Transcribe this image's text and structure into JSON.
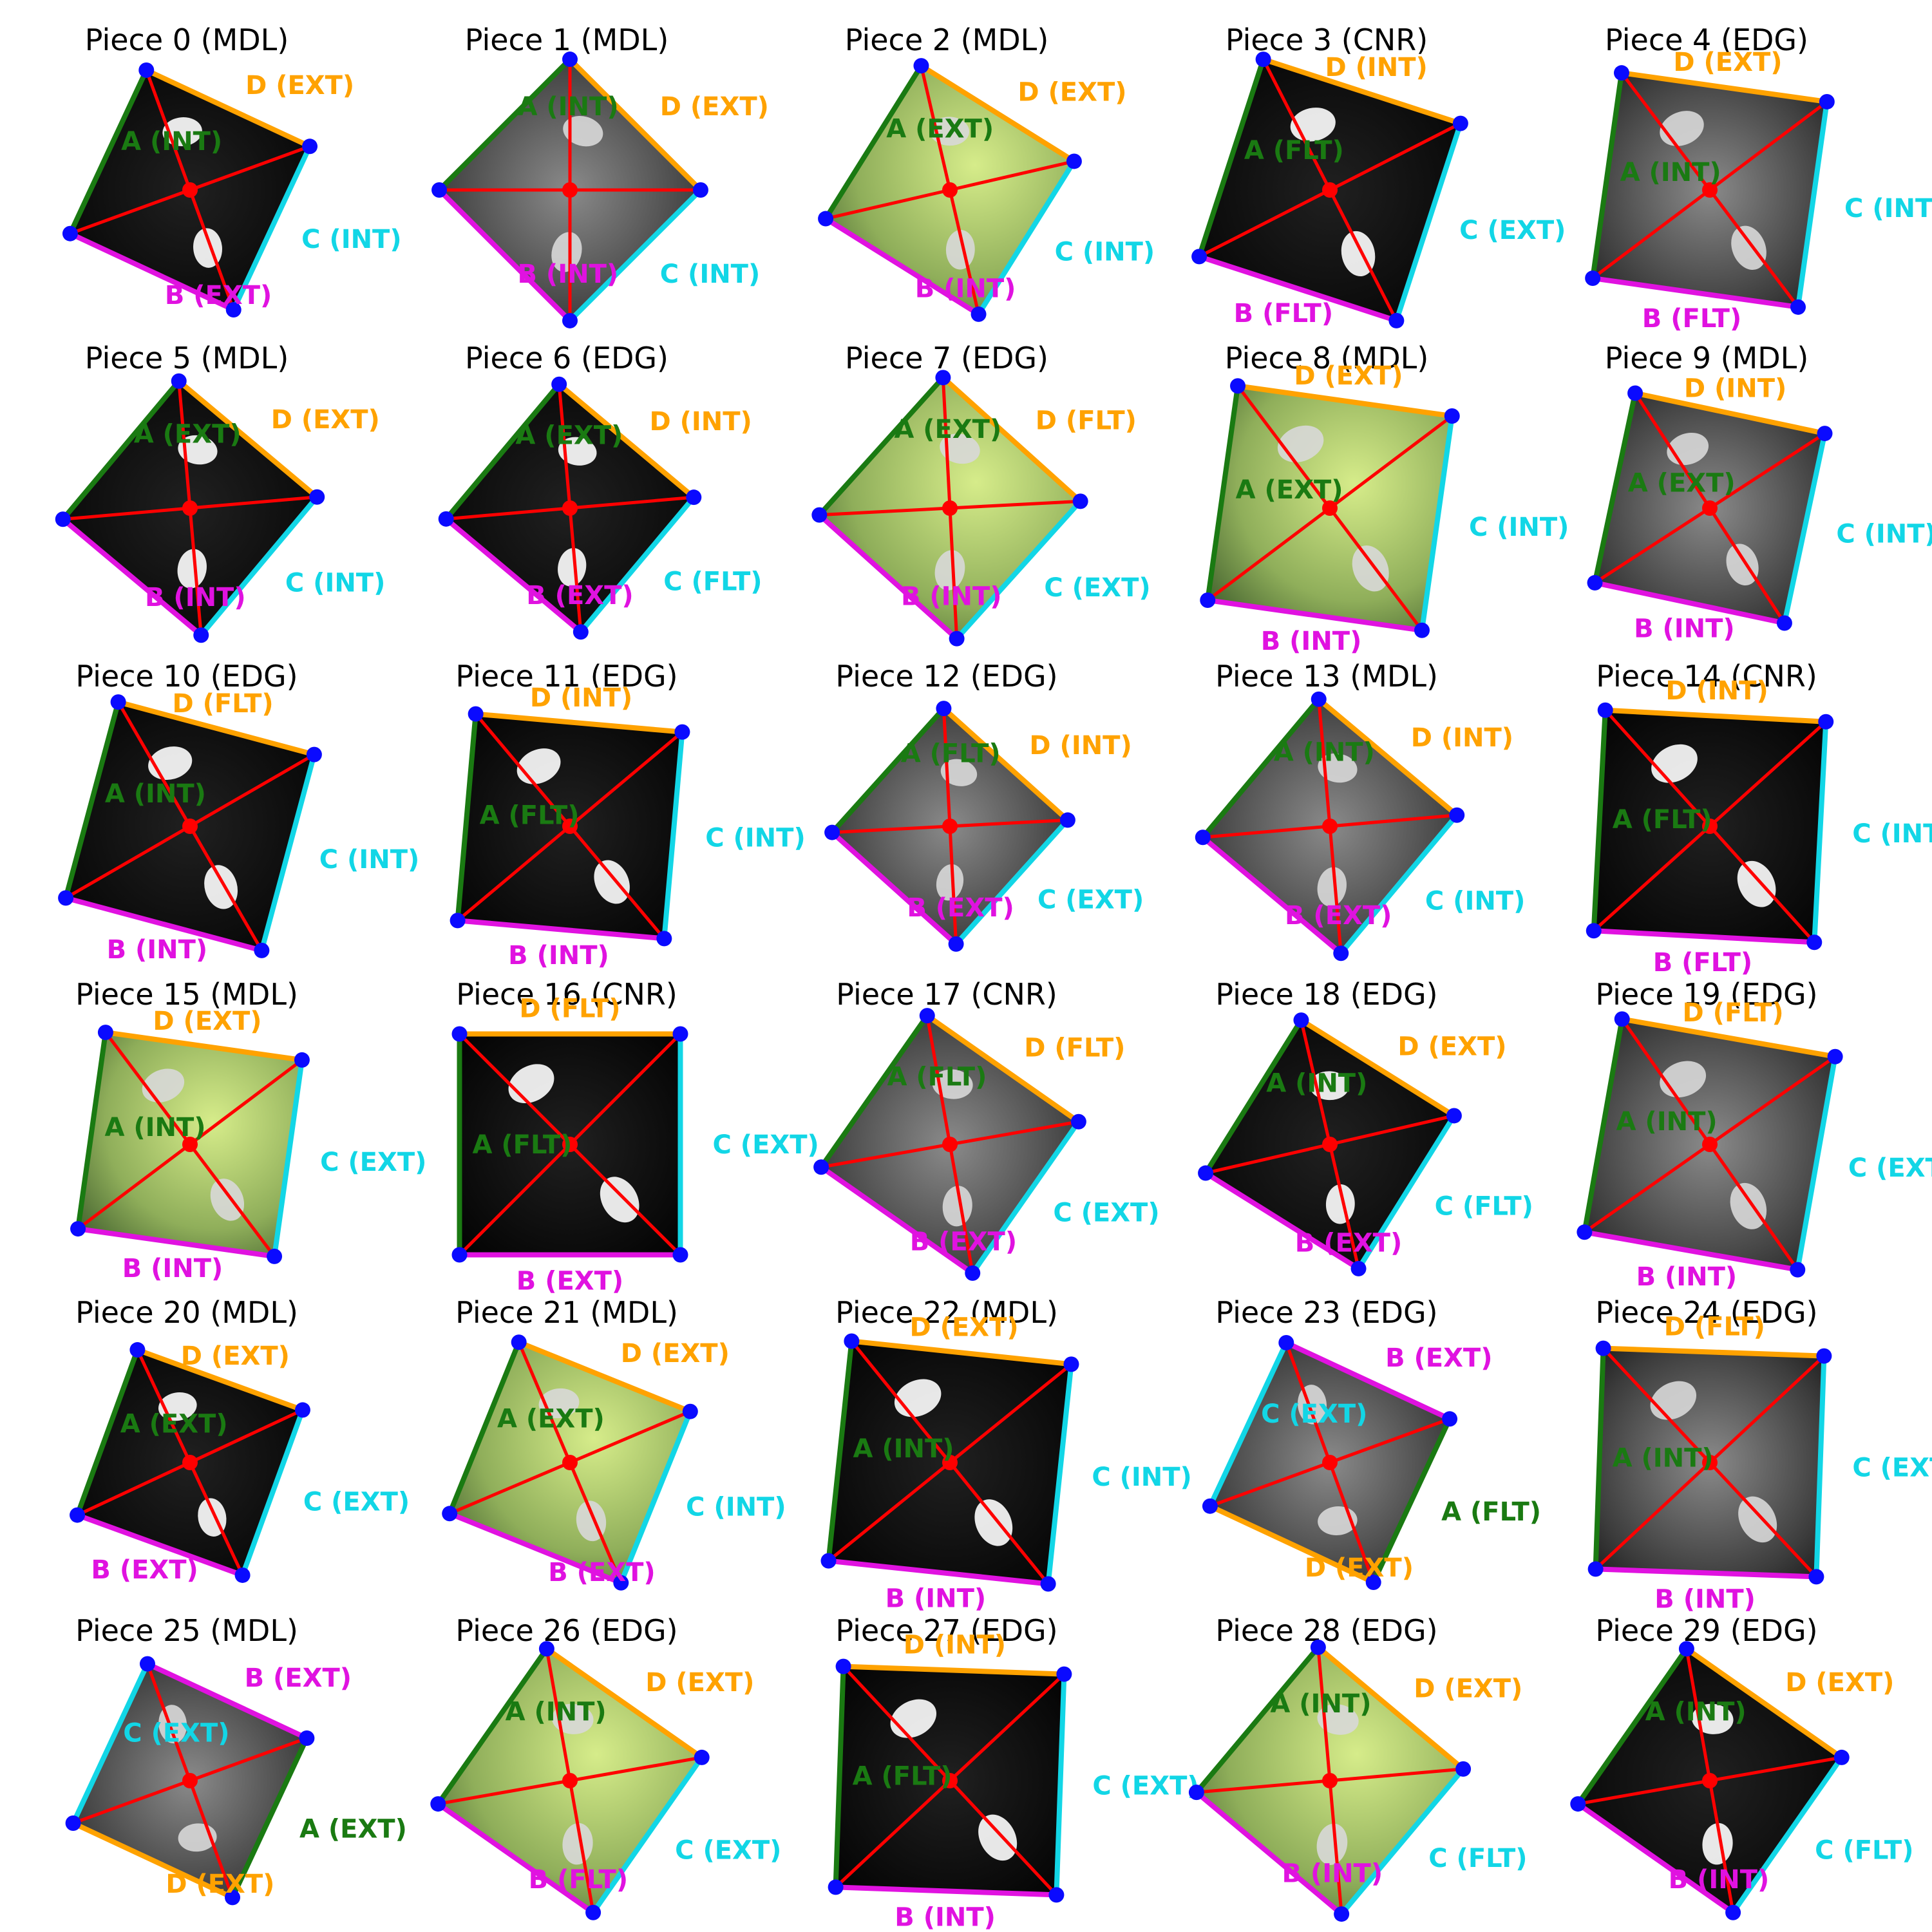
{
  "colors": {
    "A": "#1a7a12",
    "B": "#e012e0",
    "C": "#12d6e6",
    "D": "#ffa200",
    "cross": "#ff0000",
    "corner": "#0a0aff"
  },
  "pieces": [
    {
      "title": "Piece 0 (MDL)",
      "rotation": 25,
      "scale": 0.8,
      "fill": "black",
      "edges": {
        "A": "A (INT)",
        "B": "B (EXT)",
        "C": "C (INT)",
        "D": "D (EXT)"
      }
    },
    {
      "title": "Piece 1 (MDL)",
      "rotation": 45,
      "scale": 0.82,
      "fill": "gray",
      "edges": {
        "A": "A (INT)",
        "B": "B (INT)",
        "C": "C (INT)",
        "D": "D (EXT)"
      }
    },
    {
      "title": "Piece 2 (MDL)",
      "rotation": 32,
      "scale": 0.8,
      "fill": "green",
      "edges": {
        "A": "A (EXT)",
        "B": "B (INT)",
        "C": "C (INT)",
        "D": "D (EXT)"
      }
    },
    {
      "title": "Piece 3 (CNR)",
      "rotation": 18,
      "scale": 0.92,
      "fill": "black",
      "edges": {
        "A": "A (FLT)",
        "B": "B (FLT)",
        "C": "C (EXT)",
        "D": "D (INT)"
      }
    },
    {
      "title": "Piece 4 (EDG)",
      "rotation": 8,
      "scale": 0.92,
      "fill": "gray",
      "edges": {
        "A": "A (INT)",
        "B": "B (FLT)",
        "C": "C (INT)",
        "D": "D (EXT)"
      }
    },
    {
      "title": "Piece 5 (MDL)",
      "rotation": 40,
      "scale": 0.8,
      "fill": "black",
      "edges": {
        "A": "A (EXT)",
        "B": "B (INT)",
        "C": "C (INT)",
        "D": "D (EXT)"
      }
    },
    {
      "title": "Piece 6 (EDG)",
      "rotation": 40,
      "scale": 0.78,
      "fill": "black",
      "edges": {
        "A": "A (EXT)",
        "B": "B (EXT)",
        "C": "C (FLT)",
        "D": "D (INT)"
      }
    },
    {
      "title": "Piece 7 (EDG)",
      "rotation": 42,
      "scale": 0.82,
      "fill": "green",
      "edges": {
        "A": "A (EXT)",
        "B": "B (INT)",
        "C": "C (EXT)",
        "D": "D (FLT)"
      }
    },
    {
      "title": "Piece 8 (MDL)",
      "rotation": 8,
      "scale": 0.96,
      "fill": "green",
      "edges": {
        "A": "A (EXT)",
        "B": "B (INT)",
        "C": "C (INT)",
        "D": "D (EXT)"
      }
    },
    {
      "title": "Piece 9 (MDL)",
      "rotation": 12,
      "scale": 0.86,
      "fill": "gray",
      "edges": {
        "A": "A (EXT)",
        "B": "B (INT)",
        "C": "C (INT)",
        "D": "D (INT)"
      }
    },
    {
      "title": "Piece 10 (EDG)",
      "rotation": 15,
      "scale": 0.9,
      "fill": "black",
      "edges": {
        "A": "A (INT)",
        "B": "B (INT)",
        "C": "C (INT)",
        "D": "D (FLT)"
      }
    },
    {
      "title": "Piece 11 (EDG)",
      "rotation": 5,
      "scale": 0.92,
      "fill": "black",
      "edges": {
        "A": "A (FLT)",
        "B": "B (INT)",
        "C": "C (INT)",
        "D": "D (INT)"
      }
    },
    {
      "title": "Piece 12 (EDG)",
      "rotation": 42,
      "scale": 0.74,
      "fill": "gray",
      "edges": {
        "A": "A (FLT)",
        "B": "B (EXT)",
        "C": "C (EXT)",
        "D": "D (INT)"
      }
    },
    {
      "title": "Piece 13 (MDL)",
      "rotation": 40,
      "scale": 0.8,
      "fill": "gray",
      "edges": {
        "A": "A (INT)",
        "B": "B (EXT)",
        "C": "C (INT)",
        "D": "D (INT)"
      }
    },
    {
      "title": "Piece 14 (CNR)",
      "rotation": 3,
      "scale": 0.98,
      "fill": "black",
      "edges": {
        "A": "A (FLT)",
        "B": "B (FLT)",
        "C": "C (INT)",
        "D": "D (INT)"
      }
    },
    {
      "title": "Piece 15 (MDL)",
      "rotation": 8,
      "scale": 0.88,
      "fill": "green",
      "edges": {
        "A": "A (INT)",
        "B": "B (INT)",
        "C": "C (EXT)",
        "D": "D (EXT)"
      }
    },
    {
      "title": "Piece 16 (CNR)",
      "rotation": 0,
      "scale": 0.98,
      "fill": "black",
      "edges": {
        "A": "A (FLT)",
        "B": "B (EXT)",
        "C": "C (EXT)",
        "D": "D (FLT)"
      }
    },
    {
      "title": "Piece 17 (CNR)",
      "rotation": 35,
      "scale": 0.82,
      "fill": "gray",
      "edges": {
        "A": "A (FLT)",
        "B": "B (EXT)",
        "C": "C (EXT)",
        "D": "D (FLT)"
      }
    },
    {
      "title": "Piece 18 (EDG)",
      "rotation": 32,
      "scale": 0.8,
      "fill": "black",
      "edges": {
        "A": "A (INT)",
        "B": "B (EXT)",
        "C": "C (FLT)",
        "D": "D (EXT)"
      }
    },
    {
      "title": "Piece 19 (EDG)",
      "rotation": 10,
      "scale": 0.96,
      "fill": "gray",
      "edges": {
        "A": "A (INT)",
        "B": "B (INT)",
        "C": "C (EXT)",
        "D": "D (FLT)"
      }
    },
    {
      "title": "Piece 20 (MDL)",
      "rotation": 20,
      "scale": 0.78,
      "fill": "black",
      "edges": {
        "A": "A (EXT)",
        "B": "B (EXT)",
        "C": "C (EXT)",
        "D": "D (EXT)"
      }
    },
    {
      "title": "Piece 21 (MDL)",
      "rotation": 22,
      "scale": 0.82,
      "fill": "green",
      "edges": {
        "A": "A (EXT)",
        "B": "B (EXT)",
        "C": "C (INT)",
        "D": "D (EXT)"
      }
    },
    {
      "title": "Piece 22 (MDL)",
      "rotation": 6,
      "scale": 0.98,
      "fill": "black",
      "edges": {
        "A": "A (INT)",
        "B": "B (INT)",
        "C": "C (INT)",
        "D": "D (EXT)"
      }
    },
    {
      "title": "Piece 23 (EDG)",
      "rotation": 205,
      "scale": 0.8,
      "fill": "gray",
      "edges": {
        "A": "A (FLT)",
        "B": "B (EXT)",
        "C": "C (EXT)",
        "D": "D (EXT)"
      }
    },
    {
      "title": "Piece 24 (EDG)",
      "rotation": 2,
      "scale": 0.98,
      "fill": "gray",
      "edges": {
        "A": "A (INT)",
        "B": "B (INT)",
        "C": "C (EXT)",
        "D": "D (FLT)"
      }
    },
    {
      "title": "Piece 25 (MDL)",
      "rotation": 205,
      "scale": 0.78,
      "fill": "gray",
      "edges": {
        "A": "A (EXT)",
        "B": "B (EXT)",
        "C": "C (EXT)",
        "D": "D (EXT)"
      }
    },
    {
      "title": "Piece 26 (EDG)",
      "rotation": 35,
      "scale": 0.84,
      "fill": "green",
      "edges": {
        "A": "A (INT)",
        "B": "B (FLT)",
        "C": "C (EXT)",
        "D": "D (EXT)"
      }
    },
    {
      "title": "Piece 27 (EDG)",
      "rotation": 2,
      "scale": 0.98,
      "fill": "black",
      "edges": {
        "A": "A (FLT)",
        "B": "B (INT)",
        "C": "C (EXT)",
        "D": "D (INT)"
      }
    },
    {
      "title": "Piece 28 (EDG)",
      "rotation": 40,
      "scale": 0.84,
      "fill": "green",
      "edges": {
        "A": "A (INT)",
        "B": "B (INT)",
        "C": "C (FLT)",
        "D": "D (EXT)"
      }
    },
    {
      "title": "Piece 29 (EDG)",
      "rotation": 35,
      "scale": 0.84,
      "fill": "black",
      "edges": {
        "A": "A (INT)",
        "B": "B (INT)",
        "C": "C (FLT)",
        "D": "D (EXT)"
      }
    }
  ]
}
